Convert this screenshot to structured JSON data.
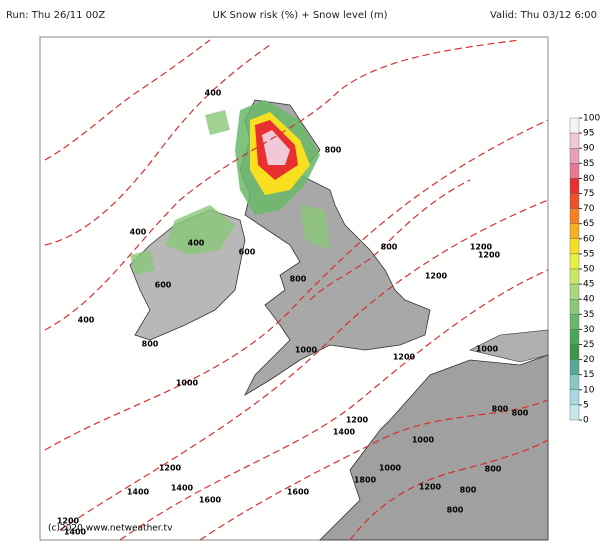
{
  "header": {
    "run": "Run: Thu 26/11 00Z",
    "title": "UK Snow risk (%) + Snow level (m)",
    "valid": "Valid: Thu 03/12 6:00"
  },
  "colorbar": {
    "ticks": [
      100,
      95,
      90,
      85,
      80,
      75,
      70,
      65,
      60,
      55,
      50,
      45,
      40,
      35,
      30,
      25,
      20,
      15,
      10,
      5,
      0
    ],
    "colors": [
      "#f4f4f4",
      "#f0c8d8",
      "#e8a0b8",
      "#e87890",
      "#e83030",
      "#f05028",
      "#f88020",
      "#f8b020",
      "#f8e020",
      "#e8f040",
      "#c8e860",
      "#a8d878",
      "#88c878",
      "#68b868",
      "#48a858",
      "#389848",
      "#58a898",
      "#88c8c0",
      "#a8d8e0",
      "#c8e8f0"
    ]
  },
  "contour_labels": [
    400,
    800,
    400,
    400,
    600,
    800,
    1200,
    1200,
    800,
    1200,
    600,
    400,
    800,
    1000,
    1200,
    1000,
    1000,
    800,
    800,
    1200,
    1400,
    1000,
    1200,
    1000,
    800,
    1400,
    1400,
    1800,
    1200,
    1600,
    1600,
    800,
    1200,
    1400,
    800
  ],
  "credit": "(c)2020 www.netweather.tv"
}
